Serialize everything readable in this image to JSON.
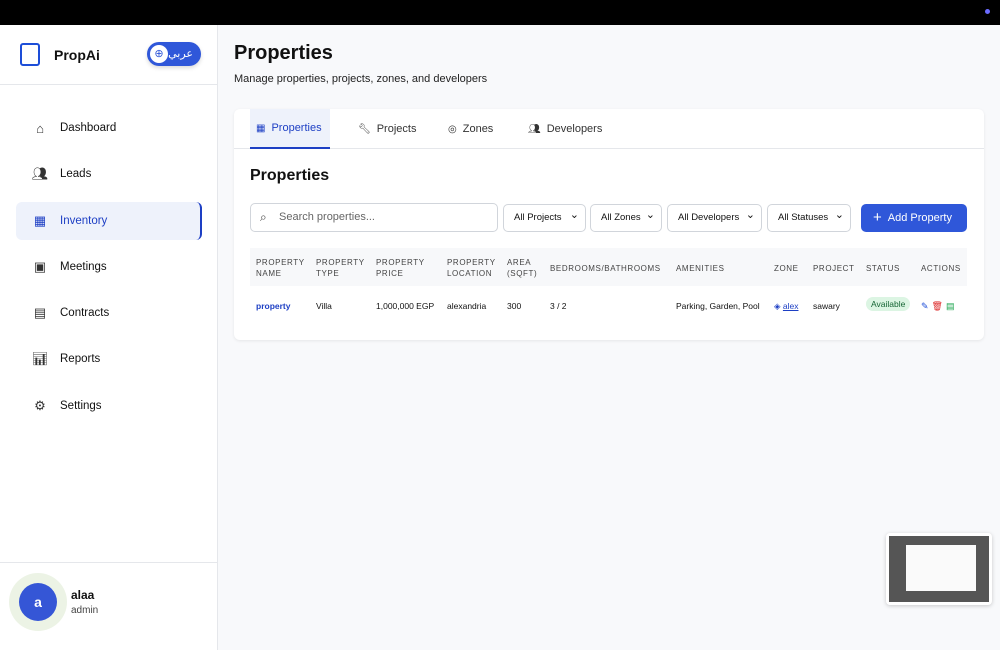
{
  "brand": {
    "name": "PropAi",
    "lang_toggle": "عربي"
  },
  "sidebar": {
    "items": [
      {
        "label": "Dashboard",
        "icon": "home-icon"
      },
      {
        "label": "Leads",
        "icon": "users-icon"
      },
      {
        "label": "Inventory",
        "icon": "building-icon",
        "active": true
      },
      {
        "label": "Meetings",
        "icon": "calendar-icon"
      },
      {
        "label": "Contracts",
        "icon": "document-icon"
      },
      {
        "label": "Reports",
        "icon": "bar-chart-icon"
      },
      {
        "label": "Settings",
        "icon": "gear-icon"
      }
    ]
  },
  "user": {
    "initial": "a",
    "name": "alaa",
    "role": "admin"
  },
  "header": {
    "title": "Properties",
    "subtitle": "Manage properties, projects, zones, and developers"
  },
  "tabs": [
    {
      "label": "Properties",
      "active": true
    },
    {
      "label": "Projects"
    },
    {
      "label": "Zones"
    },
    {
      "label": "Developers"
    }
  ],
  "section": {
    "title": "Properties",
    "search_placeholder": "Search properties...",
    "filters": [
      "All Projects",
      "All Zones",
      "All Developers",
      "All Statuses"
    ],
    "add_label": "Add Property"
  },
  "table": {
    "headers": [
      "PROPERTY NAME",
      "PROPERTY TYPE",
      "PROPERTY PRICE",
      "PROPERTY LOCATION",
      "AREA (SQFT)",
      "BEDROOMS/BATHROOMS",
      "AMENITIES",
      "ZONE",
      "PROJECT",
      "STATUS",
      "ACTIONS"
    ],
    "rows": [
      [
        "property",
        "Villa",
        "1,000,000 EGP",
        "alexandria",
        "300",
        "3 / 2",
        "Parking, Garden, Pool",
        "alex",
        "sawary",
        "Available"
      ]
    ]
  },
  "colors": {
    "accent": "#2f57d9",
    "active_text": "#1d3fc4",
    "status_bg": "#dcf5e3"
  }
}
